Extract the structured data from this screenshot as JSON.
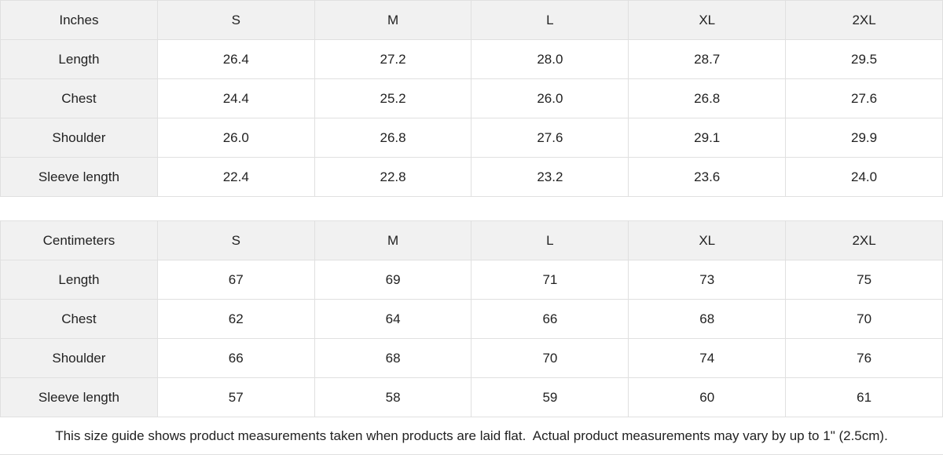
{
  "chart_data": [
    {
      "type": "table",
      "title": "Inches",
      "columns": [
        "Inches",
        "S",
        "M",
        "L",
        "XL",
        "2XL"
      ],
      "rows": [
        [
          "Length",
          "26.4",
          "27.2",
          "28.0",
          "28.7",
          "29.5"
        ],
        [
          "Chest",
          "24.4",
          "25.2",
          "26.0",
          "26.8",
          "27.6"
        ],
        [
          "Shoulder",
          "26.0",
          "26.8",
          "27.6",
          "29.1",
          "29.9"
        ],
        [
          "Sleeve length",
          "22.4",
          "22.8",
          "23.2",
          "23.6",
          "24.0"
        ]
      ]
    },
    {
      "type": "table",
      "title": "Centimeters",
      "columns": [
        "Centimeters",
        "S",
        "M",
        "L",
        "XL",
        "2XL"
      ],
      "rows": [
        [
          "Length",
          "67",
          "69",
          "71",
          "73",
          "75"
        ],
        [
          "Chest",
          "62",
          "64",
          "66",
          "68",
          "70"
        ],
        [
          "Shoulder",
          "66",
          "68",
          "70",
          "74",
          "76"
        ],
        [
          "Sleeve length",
          "57",
          "58",
          "59",
          "60",
          "61"
        ]
      ]
    }
  ],
  "footer": {
    "note": "This size guide shows product measurements taken when products are laid flat.  Actual product measurements may vary by up to 1\" (2.5cm)."
  },
  "colors": {
    "header_bg": "#f1f1f1",
    "border": "#e0e0e0",
    "text": "#222222",
    "cell_bg": "#ffffff"
  }
}
